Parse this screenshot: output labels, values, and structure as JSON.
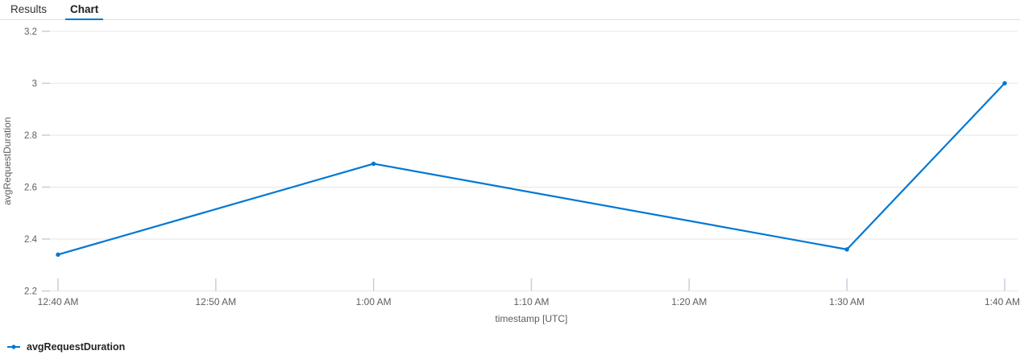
{
  "tabs": {
    "items": [
      {
        "label": "Results",
        "active": false
      },
      {
        "label": "Chart",
        "active": true
      }
    ]
  },
  "colors": {
    "accent": "#0078d4",
    "line": "#0078d4",
    "gridline": "#e6e6e6",
    "tick": "#c3cbdd",
    "axis_text": "#605e5c",
    "legend_text": "#252423",
    "tab_divider": "#e1dfdd"
  },
  "chart_data": {
    "type": "line",
    "title": "",
    "xlabel": "timestamp [UTC]",
    "ylabel": "avgRequestDuration",
    "x_tick_labels": [
      "12:40 AM",
      "12:50 AM",
      "1:00 AM",
      "1:10 AM",
      "1:20 AM",
      "1:30 AM",
      "1:40 AM"
    ],
    "x_tick_minutes": [
      0,
      10,
      20,
      30,
      40,
      50,
      60
    ],
    "xlim_minutes": [
      0,
      60
    ],
    "y_ticks": [
      2.2,
      2.4,
      2.6,
      2.8,
      3,
      3.2
    ],
    "ylim": [
      2.2,
      3.2
    ],
    "grid": "horizontal",
    "legend_position": "bottom-left",
    "series": [
      {
        "name": "avgRequestDuration",
        "color": "#0078d4",
        "points": [
          {
            "x_label": "12:40 AM",
            "x_minutes": 0,
            "y": 2.34
          },
          {
            "x_label": "1:00 AM",
            "x_minutes": 20,
            "y": 2.69
          },
          {
            "x_label": "1:30 AM",
            "x_minutes": 50,
            "y": 2.36
          },
          {
            "x_label": "1:40 AM",
            "x_minutes": 60,
            "y": 3.0
          }
        ]
      }
    ]
  },
  "legend": {
    "items": [
      {
        "label": "avgRequestDuration",
        "color": "#0078d4"
      }
    ]
  }
}
